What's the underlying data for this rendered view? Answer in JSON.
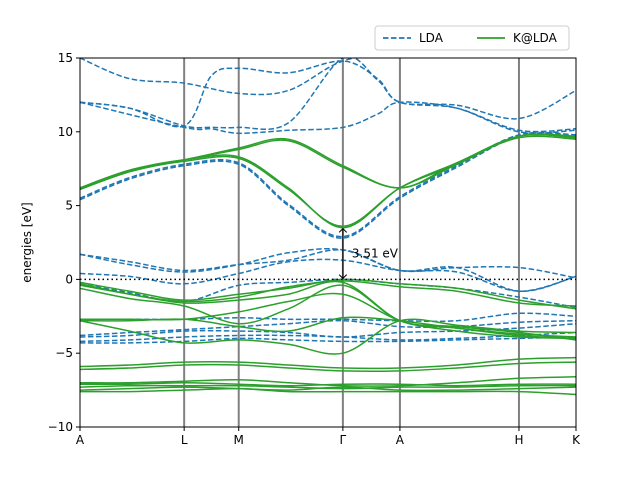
{
  "chart_data": {
    "type": "line",
    "ylabel": "energies [eV]",
    "xlabel": "",
    "ylim": [
      -10,
      15
    ],
    "yticks": [
      -10,
      -5,
      0,
      5,
      10,
      15
    ],
    "x_ticks": [
      "A",
      "L",
      "M",
      "Γ",
      "A",
      "H",
      "K"
    ],
    "k_path_positions": [
      0.0,
      0.21,
      0.32,
      0.53,
      0.645,
      0.885,
      1.0
    ],
    "fermi_level": 0,
    "legend": {
      "placement": "top-right",
      "entries": [
        "LDA",
        "K@LDA"
      ]
    },
    "annotation": {
      "text": "3.51 eV",
      "x": 0.53,
      "y_from": 0.0,
      "y_to": 3.51
    },
    "colors": {
      "LDA": "#1f77b4",
      "K@LDA": "#2ca02c",
      "kpoint_lines": "#808080"
    },
    "series": [
      {
        "name": "LDA",
        "style": "dashed",
        "bands": [
          {
            "x": [
              0,
              0.1,
              0.21,
              0.32,
              0.42,
              0.53,
              0.645,
              0.76,
              0.885,
              1.0
            ],
            "y": [
              15.0,
              13.6,
              13.3,
              12.6,
              12.8,
              14.8,
              15.3,
              15.2,
              15.2,
              15.2
            ]
          },
          {
            "x": [
              0,
              0.1,
              0.21,
              0.265,
              0.32,
              0.42,
              0.53,
              0.6,
              0.645,
              0.76,
              0.885,
              1.0
            ],
            "y": [
              12.0,
              11.6,
              10.4,
              13.8,
              14.3,
              14.0,
              14.8,
              13.6,
              12.0,
              11.8,
              10.9,
              12.8
            ]
          },
          {
            "x": [
              0,
              0.1,
              0.21,
              0.265,
              0.32,
              0.42,
              0.53,
              0.6,
              0.645,
              0.76,
              0.885,
              1.0
            ],
            "y": [
              12.0,
              11.6,
              10.4,
              10.3,
              10.3,
              10.6,
              15.0,
              13.5,
              12.0,
              11.6,
              10.1,
              10.2
            ]
          },
          {
            "x": [
              0,
              0.21,
              0.265,
              0.32,
              0.42,
              0.53,
              0.6,
              0.645,
              0.76,
              0.885,
              1.0
            ],
            "y": [
              12.0,
              10.3,
              10.2,
              9.9,
              10.1,
              10.3,
              11.2,
              12.0,
              11.6,
              10.0,
              10.1
            ]
          },
          {
            "x": [
              0,
              0.1,
              0.21,
              0.32,
              0.42,
              0.53,
              0.645,
              0.76,
              0.885,
              1.0
            ],
            "y": [
              5.4,
              6.8,
              7.7,
              7.8,
              5.0,
              2.8,
              5.5,
              7.6,
              9.7,
              9.7
            ]
          },
          {
            "x": [
              0,
              0.1,
              0.21,
              0.32,
              0.42,
              0.53,
              0.645,
              0.76,
              0.885,
              1.0
            ],
            "y": [
              5.5,
              6.9,
              7.8,
              7.9,
              5.1,
              2.9,
              5.6,
              7.7,
              9.8,
              9.8
            ]
          },
          {
            "x": [
              0,
              0.1,
              0.21,
              0.32,
              0.42,
              0.53,
              0.645,
              0.76,
              0.885,
              1.0
            ],
            "y": [
              1.7,
              1.2,
              0.6,
              1.0,
              1.3,
              2.0,
              0.6,
              0.8,
              0.8,
              0.1
            ]
          },
          {
            "x": [
              0,
              0.1,
              0.21,
              0.32,
              0.42,
              0.53,
              0.645,
              0.76,
              0.885,
              1.0
            ],
            "y": [
              1.7,
              1.0,
              0.5,
              1.0,
              1.8,
              2.0,
              0.6,
              0.8,
              -0.8,
              0.2
            ]
          },
          {
            "x": [
              0,
              0.1,
              0.21,
              0.32,
              0.42,
              0.53,
              0.645,
              0.76,
              0.885,
              1.0
            ],
            "y": [
              0.4,
              0.2,
              -0.3,
              0.4,
              1.2,
              1.3,
              0.6,
              0.5,
              -0.8,
              0.2
            ]
          },
          {
            "x": [
              0,
              0.1,
              0.21,
              0.32,
              0.42,
              0.53,
              0.645,
              0.76,
              0.885,
              1.0
            ],
            "y": [
              -0.3,
              -0.9,
              -1.5,
              -0.4,
              -0.2,
              0.0,
              -0.3,
              -0.6,
              -1.2,
              -1.9
            ]
          },
          {
            "x": [
              0,
              0.1,
              0.21,
              0.32,
              0.42,
              0.53,
              0.645,
              0.76,
              0.885,
              1.0
            ],
            "y": [
              -2.7,
              -2.7,
              -2.7,
              -2.6,
              -2.7,
              -2.7,
              -2.8,
              -2.8,
              -2.3,
              -2.5
            ]
          },
          {
            "x": [
              0,
              0.1,
              0.21,
              0.32,
              0.42,
              0.53,
              0.645,
              0.76,
              0.885,
              1.0
            ],
            "y": [
              -3.8,
              -3.6,
              -3.4,
              -3.2,
              -3.0,
              -2.8,
              -3.2,
              -3.2,
              -2.9,
              -2.8
            ]
          },
          {
            "x": [
              0,
              0.1,
              0.21,
              0.32,
              0.42,
              0.53,
              0.645,
              0.76,
              0.885,
              1.0
            ],
            "y": [
              -3.9,
              -3.8,
              -3.5,
              -3.5,
              -3.6,
              -3.9,
              -3.6,
              -3.5,
              -3.3,
              -3.0
            ]
          },
          {
            "x": [
              0,
              0.1,
              0.21,
              0.32,
              0.42,
              0.53,
              0.645,
              0.76,
              0.885,
              1.0
            ],
            "y": [
              -4.2,
              -4.1,
              -3.9,
              -3.8,
              -3.8,
              -3.9,
              -4.1,
              -4.0,
              -3.8,
              -3.6
            ]
          },
          {
            "x": [
              0,
              0.1,
              0.21,
              0.32,
              0.42,
              0.53,
              0.645,
              0.76,
              0.885,
              1.0
            ],
            "y": [
              -4.3,
              -4.3,
              -4.2,
              -4.0,
              -4.1,
              -4.2,
              -4.2,
              -4.1,
              -4.0,
              -3.9
            ]
          }
        ]
      },
      {
        "name": "K@LDA",
        "style": "solid",
        "bands": [
          {
            "x": [
              0,
              0.1,
              0.21,
              0.32,
              0.42,
              0.53,
              0.645,
              0.76,
              0.885,
              1.0
            ],
            "y": [
              6.1,
              7.3,
              8.1,
              8.8,
              9.4,
              7.6,
              6.2,
              7.8,
              9.7,
              9.6
            ]
          },
          {
            "x": [
              0,
              0.1,
              0.21,
              0.32,
              0.42,
              0.53,
              0.645,
              0.76,
              0.885,
              1.0
            ],
            "y": [
              6.2,
              7.4,
              8.1,
              8.9,
              9.5,
              7.7,
              6.2,
              7.9,
              9.6,
              9.5
            ]
          },
          {
            "x": [
              0,
              0.1,
              0.21,
              0.32,
              0.42,
              0.53,
              0.645,
              0.76,
              0.885,
              1.0
            ],
            "y": [
              6.2,
              7.4,
              8.1,
              8.3,
              6.2,
              3.5,
              6.2,
              7.9,
              9.7,
              9.6
            ]
          },
          {
            "x": [
              0,
              0.1,
              0.21,
              0.32,
              0.42,
              0.53,
              0.645,
              0.76,
              0.885,
              1.0
            ],
            "y": [
              6.1,
              7.3,
              8.0,
              8.2,
              6.1,
              3.6,
              6.2,
              7.8,
              9.7,
              9.7
            ]
          },
          {
            "x": [
              0,
              0.1,
              0.21,
              0.32,
              0.42,
              0.53,
              0.645,
              0.76,
              0.885,
              1.0
            ],
            "y": [
              -0.2,
              -0.8,
              -1.4,
              -1.0,
              -0.6,
              0.0,
              -0.3,
              -0.6,
              -1.4,
              -2.0
            ]
          },
          {
            "x": [
              0,
              0.1,
              0.21,
              0.32,
              0.42,
              0.53,
              0.645,
              0.76,
              0.885,
              1.0
            ],
            "y": [
              -0.3,
              -1.0,
              -1.5,
              -1.2,
              -0.5,
              -0.1,
              -0.5,
              -0.8,
              -1.6,
              -1.8
            ]
          },
          {
            "x": [
              0,
              0.1,
              0.21,
              0.32,
              0.42,
              0.53,
              0.645,
              0.76,
              0.885,
              1.0
            ],
            "y": [
              -0.4,
              -1.0,
              -1.6,
              -1.4,
              -1.0,
              -0.2,
              -2.8,
              -3.3,
              -3.8,
              -4.0
            ]
          },
          {
            "x": [
              0,
              0.1,
              0.21,
              0.32,
              0.42,
              0.53,
              0.645,
              0.76,
              0.885,
              1.0
            ],
            "y": [
              -0.6,
              -1.3,
              -1.8,
              -3.0,
              -2.0,
              -0.4,
              -2.8,
              -3.2,
              -3.6,
              -4.1
            ]
          },
          {
            "x": [
              0,
              0.1,
              0.21,
              0.32,
              0.42,
              0.53,
              0.645,
              0.76,
              0.885,
              1.0
            ],
            "y": [
              -2.7,
              -2.7,
              -2.7,
              -2.2,
              -1.5,
              -1.0,
              -2.8,
              -3.5,
              -3.9,
              -4.0
            ]
          },
          {
            "x": [
              0,
              0.1,
              0.21,
              0.32,
              0.42,
              0.53,
              0.645,
              0.76,
              0.885,
              1.0
            ],
            "y": [
              -2.8,
              -2.8,
              -2.7,
              -3.2,
              -3.5,
              -2.6,
              -2.8,
              -3.3,
              -3.7,
              -3.9
            ]
          },
          {
            "x": [
              0,
              0.1,
              0.21,
              0.32,
              0.42,
              0.53,
              0.645,
              0.76,
              0.885,
              1.0
            ],
            "y": [
              -2.8,
              -3.5,
              -4.3,
              -4.1,
              -4.4,
              -5.0,
              -2.8,
              -3.1,
              -3.5,
              -3.6
            ]
          },
          {
            "x": [
              0,
              0.1,
              0.21,
              0.32,
              0.42,
              0.53,
              0.645,
              0.76,
              0.885,
              1.0
            ],
            "y": [
              -5.9,
              -5.8,
              -5.6,
              -5.6,
              -5.8,
              -6.0,
              -6.0,
              -5.8,
              -5.4,
              -5.3
            ]
          },
          {
            "x": [
              0,
              0.1,
              0.21,
              0.32,
              0.42,
              0.53,
              0.645,
              0.76,
              0.885,
              1.0
            ],
            "y": [
              -6.1,
              -6.0,
              -5.8,
              -5.8,
              -6.0,
              -6.2,
              -6.2,
              -6.0,
              -5.7,
              -5.6
            ]
          },
          {
            "x": [
              0,
              0.1,
              0.21,
              0.32,
              0.42,
              0.53,
              0.645,
              0.76,
              0.885,
              1.0
            ],
            "y": [
              -7.0,
              -7.0,
              -6.9,
              -6.8,
              -7.0,
              -7.2,
              -7.2,
              -7.0,
              -6.7,
              -6.6
            ]
          },
          {
            "x": [
              0,
              0.1,
              0.21,
              0.32,
              0.42,
              0.53,
              0.645,
              0.76,
              0.885,
              1.0
            ],
            "y": [
              -7.1,
              -7.1,
              -7.0,
              -7.1,
              -7.2,
              -7.1,
              -7.1,
              -7.2,
              -7.1,
              -7.1
            ]
          },
          {
            "x": [
              0,
              0.1,
              0.21,
              0.32,
              0.42,
              0.53,
              0.645,
              0.76,
              0.885,
              1.0
            ],
            "y": [
              -7.3,
              -7.2,
              -7.2,
              -7.2,
              -7.3,
              -7.4,
              -7.3,
              -7.3,
              -7.2,
              -7.2
            ]
          },
          {
            "x": [
              0,
              0.1,
              0.21,
              0.32,
              0.42,
              0.53,
              0.645,
              0.76,
              0.885,
              1.0
            ],
            "y": [
              -7.5,
              -7.4,
              -7.3,
              -7.4,
              -7.5,
              -7.3,
              -7.5,
              -7.5,
              -7.4,
              -7.3
            ]
          },
          {
            "x": [
              0,
              0.1,
              0.21,
              0.32,
              0.42,
              0.53,
              0.645,
              0.76,
              0.885,
              1.0
            ],
            "y": [
              -7.6,
              -7.6,
              -7.5,
              -7.4,
              -7.6,
              -7.6,
              -7.6,
              -7.6,
              -7.6,
              -7.8
            ]
          }
        ]
      }
    ]
  }
}
